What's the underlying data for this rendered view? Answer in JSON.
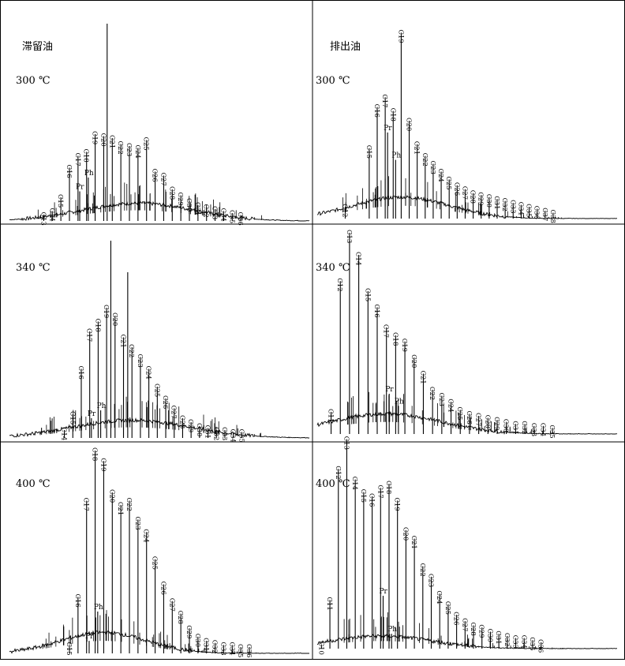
{
  "figure": {
    "columns": [
      {
        "title": "滞留油"
      },
      {
        "title": "排出油"
      }
    ]
  },
  "chart_data": [
    {
      "type": "line",
      "column": "滞留油",
      "panel_label": "300 ℃",
      "x_unit": "carbon number",
      "y_unit": "relative intensity",
      "ylim": [
        0,
        1
      ],
      "hump": {
        "center": 24,
        "width": 6.5,
        "height": 0.09
      },
      "peaks": [
        {
          "label": "C13",
          "x": 13,
          "y": 0.03
        },
        {
          "label": "C14",
          "x": 14,
          "y": 0.05
        },
        {
          "label": "C15",
          "x": 15,
          "y": 0.12
        },
        {
          "label": "C16",
          "x": 16,
          "y": 0.27
        },
        {
          "label": "C17",
          "x": 17,
          "y": 0.33
        },
        {
          "label": "Pr",
          "x": 17.2,
          "y": 0.15
        },
        {
          "label": "C18",
          "x": 18,
          "y": 0.35
        },
        {
          "label": "Ph",
          "x": 18.2,
          "y": 0.22
        },
        {
          "label": "C19",
          "x": 19,
          "y": 0.44
        },
        {
          "label": "C20",
          "x": 20,
          "y": 0.43
        },
        {
          "label": "C21",
          "x": 21,
          "y": 0.42
        },
        {
          "label": "C22",
          "x": 22,
          "y": 0.39
        },
        {
          "label": "C23",
          "x": 23,
          "y": 0.38
        },
        {
          "label": "C24",
          "x": 24,
          "y": 0.37
        },
        {
          "label": "C25",
          "x": 25,
          "y": 0.41
        },
        {
          "label": "C26",
          "x": 26,
          "y": 0.25
        },
        {
          "label": "C27",
          "x": 27,
          "y": 0.23
        },
        {
          "label": "C28",
          "x": 28,
          "y": 0.16
        },
        {
          "label": "C29",
          "x": 29,
          "y": 0.13
        },
        {
          "label": "C30",
          "x": 30,
          "y": 0.1
        },
        {
          "label": "C31",
          "x": 31,
          "y": 0.08
        },
        {
          "label": "C32",
          "x": 32,
          "y": 0.07
        },
        {
          "label": "C33",
          "x": 33,
          "y": 0.06
        },
        {
          "label": "C34",
          "x": 34,
          "y": 0.05
        },
        {
          "label": "C35",
          "x": 35,
          "y": 0.04
        },
        {
          "label": "C36",
          "x": 36,
          "y": 0.03
        },
        {
          "label": "",
          "x": 20.4,
          "y": 1.0
        }
      ]
    },
    {
      "type": "line",
      "column": "排出油",
      "panel_label": "300 ℃",
      "x_unit": "carbon number",
      "y_unit": "relative intensity",
      "ylim": [
        0,
        1
      ],
      "hump": {
        "center": 19,
        "width": 6,
        "height": 0.11
      },
      "peaks": [
        {
          "label": "C12",
          "x": 12,
          "y": 0.06
        },
        {
          "label": "C15",
          "x": 15,
          "y": 0.36
        },
        {
          "label": "C16",
          "x": 16,
          "y": 0.57
        },
        {
          "label": "C17",
          "x": 17,
          "y": 0.62
        },
        {
          "label": "Pr",
          "x": 17.3,
          "y": 0.44
        },
        {
          "label": "C18",
          "x": 18,
          "y": 0.55
        },
        {
          "label": "Ph",
          "x": 18.3,
          "y": 0.3
        },
        {
          "label": "C19",
          "x": 19,
          "y": 0.95
        },
        {
          "label": "C20",
          "x": 20,
          "y": 0.5
        },
        {
          "label": "C21",
          "x": 21,
          "y": 0.38
        },
        {
          "label": "C22",
          "x": 22,
          "y": 0.32
        },
        {
          "label": "C23",
          "x": 23,
          "y": 0.28
        },
        {
          "label": "C24",
          "x": 24,
          "y": 0.24
        },
        {
          "label": "C25",
          "x": 25,
          "y": 0.2
        },
        {
          "label": "C26",
          "x": 26,
          "y": 0.17
        },
        {
          "label": "C27",
          "x": 27,
          "y": 0.15
        },
        {
          "label": "C28",
          "x": 28,
          "y": 0.13
        },
        {
          "label": "C29",
          "x": 29,
          "y": 0.12
        },
        {
          "label": "C30",
          "x": 30,
          "y": 0.11
        },
        {
          "label": "C31",
          "x": 31,
          "y": 0.1
        },
        {
          "label": "C32",
          "x": 32,
          "y": 0.09
        },
        {
          "label": "C33",
          "x": 33,
          "y": 0.08
        },
        {
          "label": "C34",
          "x": 34,
          "y": 0.07
        },
        {
          "label": "C35",
          "x": 35,
          "y": 0.06
        },
        {
          "label": "C36",
          "x": 36,
          "y": 0.05
        },
        {
          "label": "C37",
          "x": 37,
          "y": 0.04
        },
        {
          "label": "C38",
          "x": 38,
          "y": 0.03
        }
      ]
    },
    {
      "type": "line",
      "column": "滞留油",
      "panel_label": "340 ℃",
      "x_unit": "carbon number",
      "y_unit": "relative intensity",
      "ylim": [
        0,
        1
      ],
      "hump": {
        "center": 22,
        "width": 7,
        "height": 0.09
      },
      "peaks": [
        {
          "label": "C14",
          "x": 14,
          "y": 0.04
        },
        {
          "label": "C15",
          "x": 15,
          "y": 0.12
        },
        {
          "label": "C16",
          "x": 16,
          "y": 0.35
        },
        {
          "label": "C17",
          "x": 17,
          "y": 0.54
        },
        {
          "label": "Pr",
          "x": 17.2,
          "y": 0.1
        },
        {
          "label": "C18",
          "x": 18,
          "y": 0.59
        },
        {
          "label": "Ph",
          "x": 18.3,
          "y": 0.14
        },
        {
          "label": "C19",
          "x": 19,
          "y": 0.66
        },
        {
          "label": "C20",
          "x": 20,
          "y": 0.62
        },
        {
          "label": "C21",
          "x": 21,
          "y": 0.51
        },
        {
          "label": "C22",
          "x": 22,
          "y": 0.46
        },
        {
          "label": "C23",
          "x": 23,
          "y": 0.41
        },
        {
          "label": "C24",
          "x": 24,
          "y": 0.35
        },
        {
          "label": "C25",
          "x": 25,
          "y": 0.26
        },
        {
          "label": "C26",
          "x": 26,
          "y": 0.2
        },
        {
          "label": "C27",
          "x": 27,
          "y": 0.15
        },
        {
          "label": "C28",
          "x": 28,
          "y": 0.1
        },
        {
          "label": "C29",
          "x": 29,
          "y": 0.08
        },
        {
          "label": "C30",
          "x": 30,
          "y": 0.06
        },
        {
          "label": "C31",
          "x": 31,
          "y": 0.05
        },
        {
          "label": "C32",
          "x": 32,
          "y": 0.04
        },
        {
          "label": "C33",
          "x": 33,
          "y": 0.04
        },
        {
          "label": "C34",
          "x": 34,
          "y": 0.03
        },
        {
          "label": "C35",
          "x": 35,
          "y": 0.03
        },
        {
          "label": "",
          "x": 19.5,
          "y": 1.0
        },
        {
          "label": "",
          "x": 21.5,
          "y": 0.84
        }
      ]
    },
    {
      "type": "line",
      "column": "排出油",
      "panel_label": "340 ℃",
      "x_unit": "carbon number",
      "y_unit": "relative intensity",
      "ylim": [
        0,
        1
      ],
      "hump": {
        "center": 17,
        "width": 6,
        "height": 0.1
      },
      "peaks": [
        {
          "label": "C11",
          "x": 11,
          "y": 0.11
        },
        {
          "label": "C12",
          "x": 12,
          "y": 0.76
        },
        {
          "label": "C13",
          "x": 13,
          "y": 1.0
        },
        {
          "label": "C14",
          "x": 14,
          "y": 0.89
        },
        {
          "label": "C15",
          "x": 15,
          "y": 0.71
        },
        {
          "label": "C16",
          "x": 16,
          "y": 0.63
        },
        {
          "label": "C17",
          "x": 17,
          "y": 0.53
        },
        {
          "label": "Pr",
          "x": 17.3,
          "y": 0.2
        },
        {
          "label": "C18",
          "x": 18,
          "y": 0.49
        },
        {
          "label": "Ph",
          "x": 18.3,
          "y": 0.14
        },
        {
          "label": "C19",
          "x": 19,
          "y": 0.46
        },
        {
          "label": "C20",
          "x": 20,
          "y": 0.38
        },
        {
          "label": "C21",
          "x": 21,
          "y": 0.3
        },
        {
          "label": "C22",
          "x": 22,
          "y": 0.22
        },
        {
          "label": "C23",
          "x": 23,
          "y": 0.19
        },
        {
          "label": "C24",
          "x": 24,
          "y": 0.16
        },
        {
          "label": "C25",
          "x": 25,
          "y": 0.12
        },
        {
          "label": "C26",
          "x": 26,
          "y": 0.1
        },
        {
          "label": "C27",
          "x": 27,
          "y": 0.09
        },
        {
          "label": "C28",
          "x": 28,
          "y": 0.08
        },
        {
          "label": "C29",
          "x": 29,
          "y": 0.07
        },
        {
          "label": "C30",
          "x": 30,
          "y": 0.06
        },
        {
          "label": "C31",
          "x": 31,
          "y": 0.05
        },
        {
          "label": "C32",
          "x": 32,
          "y": 0.05
        },
        {
          "label": "C33",
          "x": 33,
          "y": 0.04
        },
        {
          "label": "C34",
          "x": 34,
          "y": 0.04
        },
        {
          "label": "C35",
          "x": 35,
          "y": 0.03
        }
      ]
    },
    {
      "type": "line",
      "column": "滞留油",
      "panel_label": "400 ℃",
      "x_unit": "carbon number",
      "y_unit": "relative intensity",
      "ylim": [
        0,
        1
      ],
      "hump": {
        "center": 19,
        "width": 5,
        "height": 0.1
      },
      "peaks": [
        {
          "label": "C15",
          "x": 15,
          "y": 0.04
        },
        {
          "label": "C16",
          "x": 16,
          "y": 0.27
        },
        {
          "label": "C17",
          "x": 17,
          "y": 0.73
        },
        {
          "label": "Pr",
          "x": 17.3,
          "y": 0.06
        },
        {
          "label": "C18",
          "x": 18,
          "y": 0.97
        },
        {
          "label": "Ph",
          "x": 18.3,
          "y": 0.2
        },
        {
          "label": "C19",
          "x": 19,
          "y": 0.92
        },
        {
          "label": "C20",
          "x": 20,
          "y": 0.77
        },
        {
          "label": "C21",
          "x": 21,
          "y": 0.71
        },
        {
          "label": "C22",
          "x": 22,
          "y": 0.73
        },
        {
          "label": "C23",
          "x": 23,
          "y": 0.64
        },
        {
          "label": "C24",
          "x": 24,
          "y": 0.58
        },
        {
          "label": "C25",
          "x": 25,
          "y": 0.45
        },
        {
          "label": "C26",
          "x": 26,
          "y": 0.33
        },
        {
          "label": "C27",
          "x": 27,
          "y": 0.25
        },
        {
          "label": "C28",
          "x": 28,
          "y": 0.19
        },
        {
          "label": "C29",
          "x": 29,
          "y": 0.12
        },
        {
          "label": "C30",
          "x": 30,
          "y": 0.08
        },
        {
          "label": "C31",
          "x": 31,
          "y": 0.06
        },
        {
          "label": "C32",
          "x": 32,
          "y": 0.05
        },
        {
          "label": "C33",
          "x": 33,
          "y": 0.04
        },
        {
          "label": "C34",
          "x": 34,
          "y": 0.04
        },
        {
          "label": "C35",
          "x": 35,
          "y": 0.03
        },
        {
          "label": "C36",
          "x": 36,
          "y": 0.03
        }
      ]
    },
    {
      "type": "line",
      "column": "排出油",
      "panel_label": "400 ℃",
      "x_unit": "carbon number",
      "y_unit": "relative intensity",
      "ylim": [
        0,
        1
      ],
      "hump": {
        "center": 17,
        "width": 6,
        "height": 0.06
      },
      "peaks": [
        {
          "label": "C10",
          "x": 10,
          "y": 0.02
        },
        {
          "label": "C11",
          "x": 11,
          "y": 0.23
        },
        {
          "label": "C12",
          "x": 12,
          "y": 0.85
        },
        {
          "label": "C13",
          "x": 13,
          "y": 0.99
        },
        {
          "label": "C14",
          "x": 14,
          "y": 0.8
        },
        {
          "label": "C15",
          "x": 15,
          "y": 0.74
        },
        {
          "label": "C16",
          "x": 16,
          "y": 0.72
        },
        {
          "label": "C17",
          "x": 17,
          "y": 0.76
        },
        {
          "label": "Pr",
          "x": 17.3,
          "y": 0.25
        },
        {
          "label": "C18",
          "x": 18,
          "y": 0.78
        },
        {
          "label": "Ph",
          "x": 18.3,
          "y": 0.07
        },
        {
          "label": "C19",
          "x": 19,
          "y": 0.7
        },
        {
          "label": "C20",
          "x": 20,
          "y": 0.56
        },
        {
          "label": "C21",
          "x": 21,
          "y": 0.52
        },
        {
          "label": "C22",
          "x": 22,
          "y": 0.39
        },
        {
          "label": "C23",
          "x": 23,
          "y": 0.34
        },
        {
          "label": "C24",
          "x": 24,
          "y": 0.26
        },
        {
          "label": "C25",
          "x": 25,
          "y": 0.21
        },
        {
          "label": "C26",
          "x": 26,
          "y": 0.16
        },
        {
          "label": "C27",
          "x": 27,
          "y": 0.13
        },
        {
          "label": "C28",
          "x": 28,
          "y": 0.11
        },
        {
          "label": "C29",
          "x": 29,
          "y": 0.1
        },
        {
          "label": "C30",
          "x": 30,
          "y": 0.08
        },
        {
          "label": "C31",
          "x": 31,
          "y": 0.07
        },
        {
          "label": "C32",
          "x": 32,
          "y": 0.06
        },
        {
          "label": "C33",
          "x": 33,
          "y": 0.05
        },
        {
          "label": "C34",
          "x": 34,
          "y": 0.05
        },
        {
          "label": "C35",
          "x": 35,
          "y": 0.04
        },
        {
          "label": "C36",
          "x": 36,
          "y": 0.03
        }
      ]
    }
  ]
}
